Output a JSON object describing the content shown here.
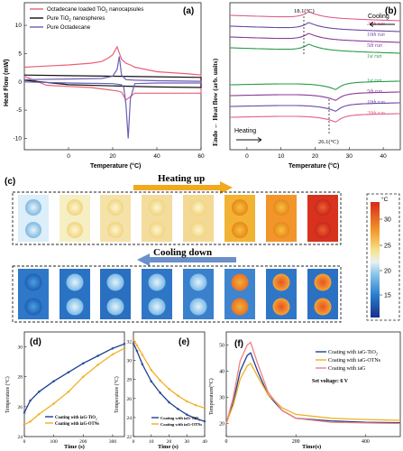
{
  "panels": {
    "a": {
      "label": "(a)",
      "ylabel": "Heat Flow (mW)",
      "xlabel": "Temperature (°C)",
      "yticks": [
        "10",
        "5",
        "0",
        "-5",
        "-10"
      ],
      "xticks": [
        "0",
        "20",
        "40",
        "60"
      ],
      "legend": [
        {
          "text": "Octadecane loaded TiO",
          "sub": "2",
          "tail": " nanocapsules",
          "color": "#e8607a"
        },
        {
          "text": "Pure TiO",
          "sub": "2",
          "tail": " nanospheres",
          "color": "#111111"
        },
        {
          "text": "Pure Octadecane",
          "sub": "",
          "tail": "",
          "color": "#6a5fb6"
        }
      ]
    },
    "b": {
      "label": "(b)",
      "ylabel": "Endo ← Heat flow (arb. units)",
      "xlabel": "Temperature (°C)",
      "xticks": [
        "0",
        "10",
        "20",
        "30",
        "40"
      ],
      "cooling_label": "Cooling",
      "heating_label": "Heating",
      "peak_cool": "18.1(°C)",
      "peak_heat": "26.1(°C)",
      "run_labels_cool": [
        "20th run",
        "10th run",
        "5th run",
        "1st run"
      ],
      "run_labels_heat": [
        "1st run",
        "5th run",
        "10th run",
        "20th run"
      ]
    },
    "c": {
      "label": "(c)",
      "heating": "Heating up",
      "cooling": "Cooling down",
      "colorbar_unit": "°C",
      "colorbar_ticks": [
        "30",
        "25",
        "20",
        "15"
      ]
    },
    "d": {
      "label": "(d)",
      "ylabel": "Temperature (°C)",
      "xlabel": "Time (s)",
      "xticks": [
        "0",
        "100",
        "200",
        "300"
      ],
      "yticks": [
        "30",
        "28",
        "26",
        "24"
      ],
      "legend": [
        {
          "text": "Coating with iaG-TiO",
          "sub": "2",
          "color": "#1f3f8f"
        },
        {
          "text": "Coating with iaG-OTNs",
          "sub": "",
          "color": "#f0b020"
        }
      ]
    },
    "e": {
      "label": "(e)",
      "ylabel": "Temperature (°C)",
      "xlabel": "Time (s)",
      "xticks": [
        "0",
        "10",
        "20",
        "30",
        "40"
      ],
      "yticks": [
        "32",
        "30",
        "28",
        "26",
        "24",
        "22"
      ],
      "legend": [
        {
          "text": "Coating with iaG-TiO",
          "sub": "2",
          "color": "#1f3f8f"
        },
        {
          "text": "Coating with iaG-OTNs",
          "sub": "",
          "color": "#f0b020"
        }
      ]
    },
    "f": {
      "label": "(f)",
      "ylabel": "Temperature(°C)",
      "xlabel": "Time(s)",
      "xticks": [
        "0",
        "200",
        "400"
      ],
      "yticks": [
        "50",
        "40",
        "30",
        "20"
      ],
      "note": "Set voltage: 6 V",
      "legend": [
        {
          "text": "Coating with iaG-TiO",
          "sub": "2",
          "color": "#1f3f8f"
        },
        {
          "text": "Coating with iaG-OTNs",
          "sub": "",
          "color": "#f0b020"
        },
        {
          "text": "Coating with iaG",
          "sub": "",
          "color": "#f08080"
        }
      ]
    }
  },
  "chart_data": [
    {
      "type": "line",
      "panel": "a",
      "xlabel": "Temperature (°C)",
      "ylabel": "Heat Flow (mW)",
      "xlim": [
        -20,
        60
      ],
      "ylim": [
        -12,
        14
      ],
      "series": [
        {
          "name": "Octadecane loaded TiO2 nanocapsules",
          "x": [
            -20,
            -10,
            0,
            10,
            15,
            18,
            20,
            22,
            24,
            26,
            28,
            30,
            40,
            55,
            60,
            60,
            40,
            30,
            26,
            24,
            22,
            20,
            18,
            10,
            0,
            -10,
            -20
          ],
          "y": [
            2.6,
            2.8,
            3.0,
            3.3,
            3.6,
            4.2,
            4.8,
            6.2,
            4.0,
            3.3,
            3.0,
            2.6,
            1.8,
            1.4,
            1.2,
            -2.0,
            -2.0,
            -2.0,
            -3.2,
            -1.8,
            -1.6,
            -1.5,
            -1.4,
            -1.0,
            -0.8,
            -0.6,
            1.0
          ]
        },
        {
          "name": "Pure TiO2 nanospheres",
          "x": [
            -20,
            0,
            20,
            40,
            60,
            60,
            40,
            20,
            0,
            -20
          ],
          "y": [
            1.2,
            1.1,
            1.0,
            0.9,
            0.8,
            -1.0,
            -0.9,
            -0.7,
            -0.5,
            0.3
          ]
        },
        {
          "name": "Pure Octadecane",
          "x": [
            -20,
            0,
            15,
            20,
            22,
            23,
            24,
            26,
            30,
            40,
            60,
            60,
            40,
            30,
            28,
            27,
            26,
            25,
            24,
            20,
            0,
            -20
          ],
          "y": [
            0.4,
            0.5,
            0.6,
            1.0,
            2.2,
            4.5,
            1.2,
            0.4,
            0.3,
            0.2,
            0.1,
            -0.2,
            -0.2,
            -0.3,
            -3.0,
            -10.0,
            -4.0,
            -1.0,
            -0.5,
            -0.3,
            -0.2,
            0.0
          ]
        }
      ]
    },
    {
      "type": "line",
      "panel": "b",
      "xlabel": "Temperature (°C)",
      "ylabel": "Endo ← Heat flow (arb. units)",
      "xlim": [
        -5,
        45
      ],
      "series": [
        {
          "name": "20th run (cooling)",
          "peak_x": 18.1,
          "color": "#e0608a"
        },
        {
          "name": "10th run (cooling)",
          "peak_x": 18.1,
          "color": "#6a4aa6"
        },
        {
          "name": "5th run (cooling)",
          "peak_x": 18.1,
          "color": "#8a3a9a"
        },
        {
          "name": "1st run (cooling)",
          "peak_x": 18.1,
          "color": "#2a9a4a"
        },
        {
          "name": "1st run (heating)",
          "peak_x": 26.1,
          "color": "#2a9a4a"
        },
        {
          "name": "5th run (heating)",
          "peak_x": 26.1,
          "color": "#8a3a9a"
        },
        {
          "name": "10th run (heating)",
          "peak_x": 26.1,
          "color": "#6a4aa6"
        },
        {
          "name": "20th run (heating)",
          "peak_x": 26.1,
          "color": "#e0608a"
        }
      ]
    },
    {
      "type": "line",
      "panel": "d",
      "xlabel": "Time (s)",
      "ylabel": "Temperature (°C)",
      "xlim": [
        0,
        340
      ],
      "ylim": [
        24,
        31
      ],
      "series": [
        {
          "name": "Coating with iaG-TiO2",
          "x": [
            0,
            20,
            50,
            100,
            150,
            200,
            250,
            300,
            340
          ],
          "y": [
            25.6,
            26.4,
            27.0,
            27.7,
            28.3,
            28.9,
            29.4,
            29.9,
            30.2
          ]
        },
        {
          "name": "Coating with iaG-OTNs",
          "x": [
            0,
            20,
            50,
            100,
            150,
            200,
            250,
            300,
            340
          ],
          "y": [
            24.8,
            25.0,
            25.5,
            26.2,
            27.0,
            28.0,
            28.8,
            29.5,
            29.9
          ]
        }
      ]
    },
    {
      "type": "line",
      "panel": "e",
      "xlabel": "Time (s)",
      "ylabel": "Temperature (°C)",
      "xlim": [
        0,
        40
      ],
      "ylim": [
        22,
        33
      ],
      "series": [
        {
          "name": "Coating with iaG-TiO2",
          "x": [
            0,
            2,
            5,
            10,
            15,
            20,
            25,
            30,
            35,
            40
          ],
          "y": [
            31.8,
            31.0,
            29.6,
            27.8,
            26.6,
            25.6,
            24.9,
            24.3,
            23.9,
            23.6
          ]
        },
        {
          "name": "Coating with iaG-OTNs",
          "x": [
            0,
            2,
            5,
            10,
            15,
            20,
            25,
            30,
            35,
            40
          ],
          "y": [
            32.2,
            31.6,
            30.6,
            29.0,
            27.9,
            27.0,
            26.3,
            25.7,
            25.3,
            25.0
          ]
        }
      ]
    },
    {
      "type": "line",
      "panel": "f",
      "xlabel": "Time(s)",
      "ylabel": "Temperature(°C)",
      "xlim": [
        0,
        500
      ],
      "ylim": [
        15,
        55
      ],
      "series": [
        {
          "name": "Coating with iaG-TiO2",
          "x": [
            0,
            20,
            40,
            60,
            70,
            90,
            120,
            160,
            200,
            300,
            400,
            500
          ],
          "y": [
            20,
            28,
            40,
            46,
            47,
            40,
            31,
            25,
            22,
            21,
            20.5,
            20.3
          ]
        },
        {
          "name": "Coating with iaG-OTNs",
          "x": [
            0,
            20,
            40,
            60,
            70,
            90,
            120,
            160,
            200,
            300,
            400,
            500
          ],
          "y": [
            20,
            27,
            37,
            42,
            43,
            38,
            31,
            26,
            23.5,
            22,
            21.5,
            21.2
          ]
        },
        {
          "name": "Coating with iaG",
          "x": [
            0,
            20,
            40,
            60,
            70,
            90,
            120,
            160,
            200,
            300,
            400,
            500
          ],
          "y": [
            20,
            30,
            44,
            50,
            51,
            43,
            32,
            25,
            22,
            20.5,
            20.2,
            20
          ]
        }
      ]
    }
  ]
}
